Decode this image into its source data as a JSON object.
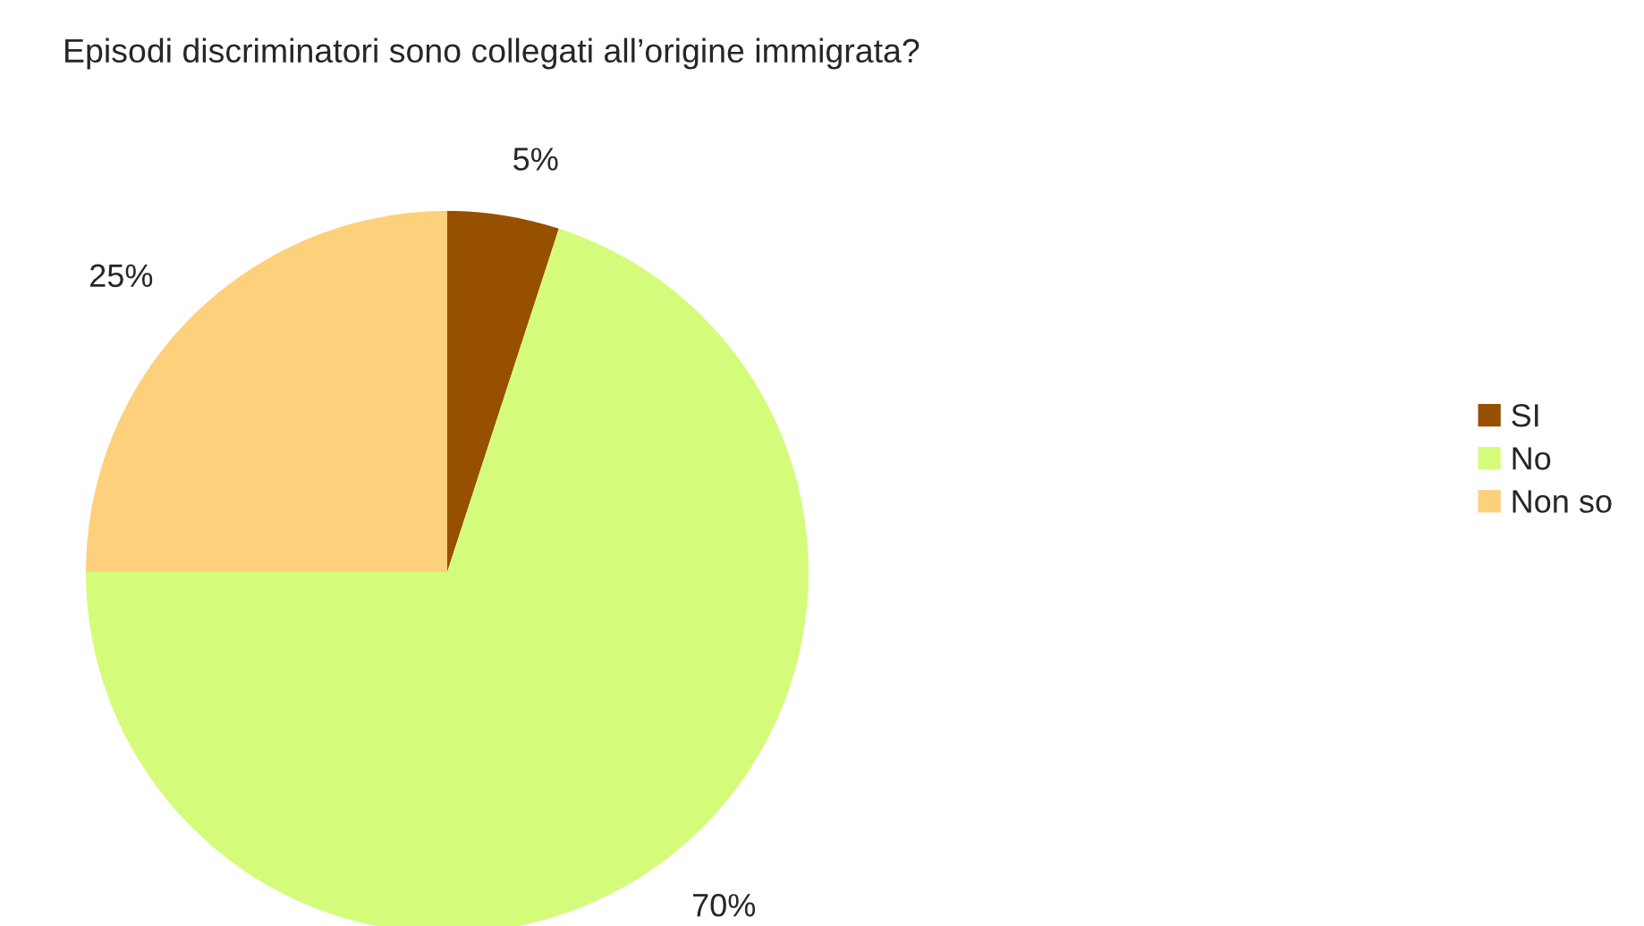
{
  "chart_data": {
    "type": "pie",
    "title": "Episodi discriminatori sono collegati all’origine immigrata?",
    "categories": [
      "SI",
      "No",
      "Non so"
    ],
    "values": [
      5,
      70,
      25
    ],
    "colors": [
      "#974f00",
      "#d5fb7b",
      "#fdd17c"
    ],
    "value_labels": [
      "5%",
      "70%",
      "25%"
    ],
    "legend": "right"
  }
}
